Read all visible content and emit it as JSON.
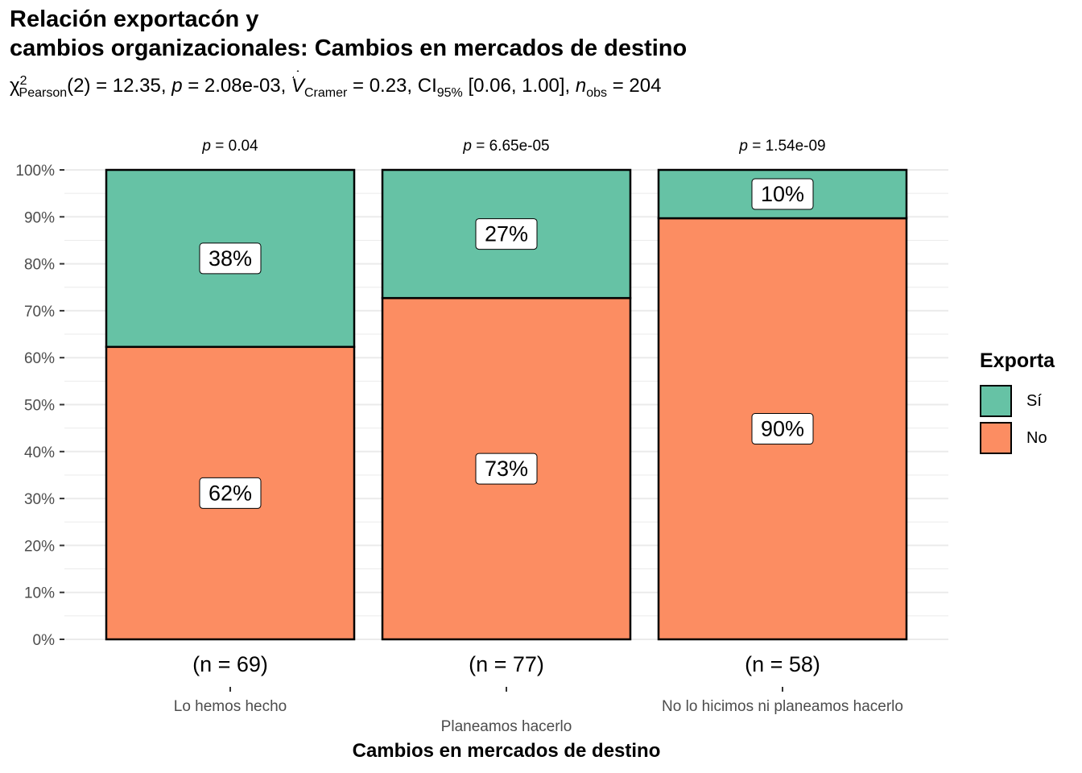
{
  "title_line1": "Relación exportacón y",
  "title_line2": "cambios organizacionales: Cambios en mercados de destino",
  "subtitle": {
    "chi": "χ",
    "chi_sup": "2",
    "chi_sub": "Pearson",
    "df": "(2) = 12.35, ",
    "p_label": "p",
    "p_value": " = 2.08e-03, ",
    "v_label": "V",
    "v_sub": "Cramer",
    "v_value": " = 0.23, CI",
    "ci_sub": "95%",
    "ci_value": " [0.06, 1.00], ",
    "n_label": "n",
    "n_sub": "obs",
    "n_value": " = 204"
  },
  "colors": {
    "si": "#66C2A5",
    "no": "#FC8D62",
    "grid": "#EBEBEB",
    "axis_text": "#4D4D4D"
  },
  "chart_data": {
    "type": "bar",
    "stacked": true,
    "xlabel": "Cambios en mercados de destino",
    "ylabel": "",
    "ylim": [
      0,
      100
    ],
    "y_ticks": [
      "0%",
      "10%",
      "20%",
      "30%",
      "40%",
      "50%",
      "60%",
      "70%",
      "80%",
      "90%",
      "100%"
    ],
    "categories": [
      "Lo hemos hecho",
      "Planeamos hacerlo",
      "No lo hicimos ni planeamos hacerlo"
    ],
    "n_labels": [
      "(n = 69)",
      "(n = 77)",
      "(n = 58)"
    ],
    "p_labels": [
      {
        "p": "p",
        "value": " = 0.04"
      },
      {
        "p": "p",
        "value": " = 6.65e-05"
      },
      {
        "p": "p",
        "value": " = 1.54e-09"
      }
    ],
    "series": [
      {
        "name": "No",
        "values": [
          62.3,
          72.7,
          89.7
        ],
        "labels": [
          "62%",
          "73%",
          "90%"
        ]
      },
      {
        "name": "Sí",
        "values": [
          37.7,
          27.3,
          10.3
        ],
        "labels": [
          "38%",
          "27%",
          "10%"
        ]
      }
    ],
    "legend": {
      "title": "Exporta",
      "position": "right",
      "items": [
        "Sí",
        "No"
      ]
    },
    "grid": true
  }
}
